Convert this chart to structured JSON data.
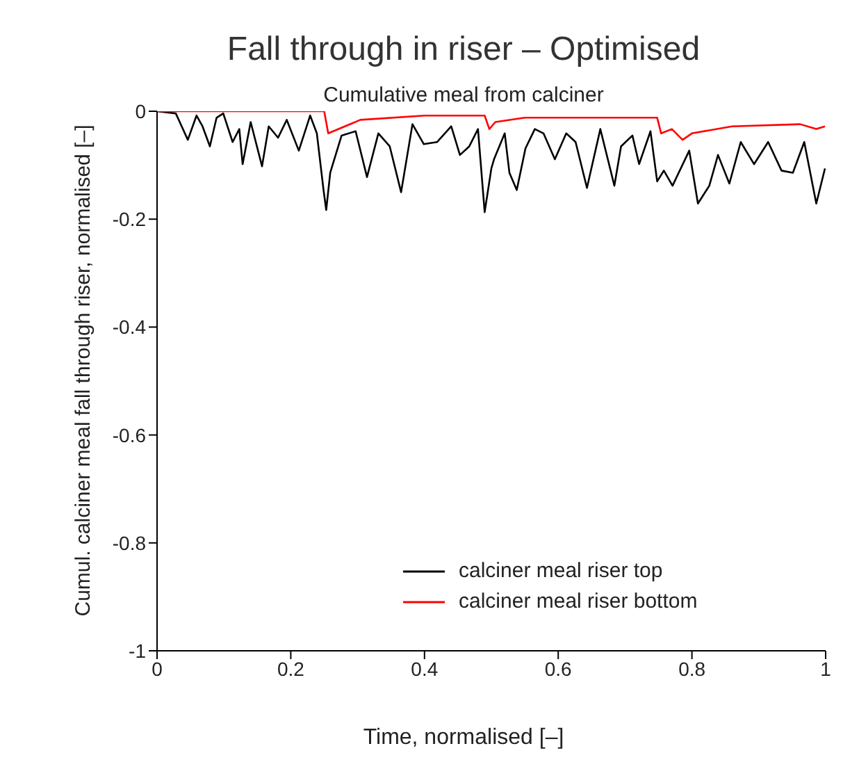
{
  "chart_data": {
    "type": "line",
    "title": "Fall through in riser – Optimised",
    "subtitle": "Cumulative meal from calciner",
    "xlabel": "Time, normalised [–]",
    "ylabel": "Cumul. calciner meal fall through riser, normalised [–]",
    "xlim": [
      0,
      1
    ],
    "xticks": [
      0,
      0.2,
      0.4,
      0.6,
      0.8,
      1
    ],
    "ylim": [
      -1,
      0
    ],
    "yticks": [
      -1,
      -0.8,
      -0.6,
      -0.4,
      -0.2,
      0
    ],
    "grid": false,
    "legend": "bottom right",
    "marker": "none",
    "line_style": "solid",
    "series": [
      {
        "name": "calciner meal riser top",
        "color": "#000000",
        "x": [
          0,
          0.028,
          0.046,
          0.059,
          0.068,
          0.079,
          0.089,
          0.099,
          0.113,
          0.123,
          0.128,
          0.14,
          0.157,
          0.167,
          0.181,
          0.194,
          0.212,
          0.229,
          0.239,
          0.249,
          0.253,
          0.259,
          0.276,
          0.297,
          0.314,
          0.331,
          0.348,
          0.365,
          0.382,
          0.399,
          0.419,
          0.44,
          0.453,
          0.467,
          0.48,
          0.49,
          0.5,
          0.504,
          0.52,
          0.527,
          0.538,
          0.551,
          0.565,
          0.578,
          0.595,
          0.612,
          0.626,
          0.643,
          0.663,
          0.684,
          0.694,
          0.711,
          0.721,
          0.738,
          0.748,
          0.758,
          0.771,
          0.796,
          0.809,
          0.826,
          0.839,
          0.856,
          0.873,
          0.893,
          0.914,
          0.934,
          0.951,
          0.968,
          0.986,
          0.999
        ],
        "values": [
          0,
          -0.004,
          -0.053,
          -0.008,
          -0.028,
          -0.065,
          -0.012,
          -0.004,
          -0.057,
          -0.033,
          -0.098,
          -0.02,
          -0.102,
          -0.028,
          -0.049,
          -0.016,
          -0.073,
          -0.008,
          -0.041,
          -0.146,
          -0.183,
          -0.114,
          -0.045,
          -0.037,
          -0.122,
          -0.041,
          -0.065,
          -0.15,
          -0.024,
          -0.061,
          -0.057,
          -0.028,
          -0.081,
          -0.065,
          -0.033,
          -0.187,
          -0.106,
          -0.089,
          -0.041,
          -0.114,
          -0.146,
          -0.069,
          -0.033,
          -0.041,
          -0.089,
          -0.041,
          -0.057,
          -0.142,
          -0.033,
          -0.138,
          -0.065,
          -0.045,
          -0.098,
          -0.037,
          -0.13,
          -0.11,
          -0.138,
          -0.073,
          -0.171,
          -0.138,
          -0.081,
          -0.134,
          -0.057,
          -0.098,
          -0.057,
          -0.11,
          -0.114,
          -0.057,
          -0.171,
          -0.106
        ]
      },
      {
        "name": "calciner meal riser bottom",
        "color": "#ff0000",
        "x": [
          0,
          0.25,
          0.256,
          0.304,
          0.4,
          0.49,
          0.497,
          0.506,
          0.55,
          0.748,
          0.754,
          0.77,
          0.786,
          0.8,
          0.86,
          0.962,
          0.986,
          0.999
        ],
        "values": [
          0,
          0,
          -0.041,
          -0.016,
          -0.008,
          -0.008,
          -0.033,
          -0.02,
          -0.012,
          -0.012,
          -0.041,
          -0.033,
          -0.053,
          -0.041,
          -0.028,
          -0.024,
          -0.033,
          -0.028
        ]
      }
    ]
  }
}
